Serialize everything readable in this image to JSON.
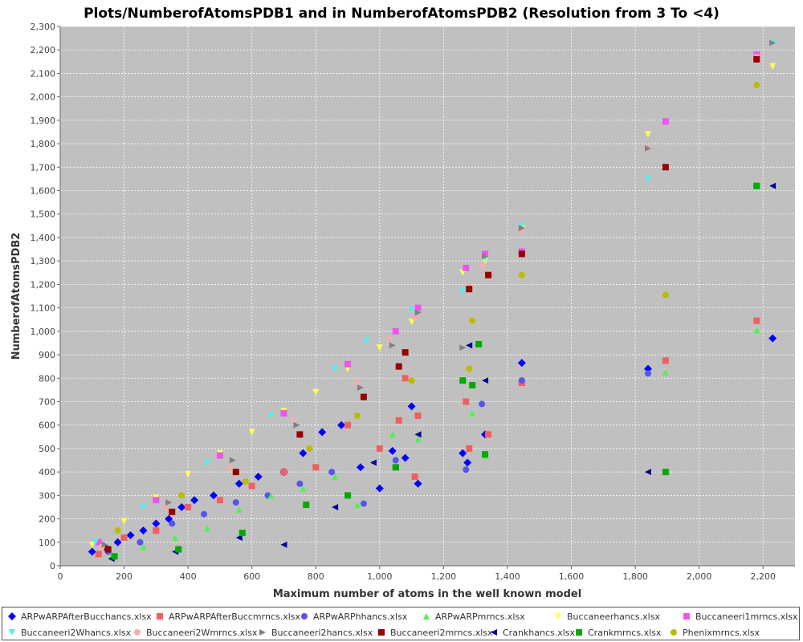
{
  "chart_data": {
    "type": "scatter",
    "title": "Plots/NumberofAtomsPDB1 and in NumberofAtomsPDB2 (Resolution from 3 To <4)",
    "xlabel": "Maximum number of atoms in the well known model",
    "ylabel": "NumberofAtomsPDB2",
    "xlim": [
      0,
      2300
    ],
    "ylim": [
      0,
      2300
    ],
    "x_ticks": [
      "0",
      "200",
      "400",
      "600",
      "800",
      "1,000",
      "1,200",
      "1,400",
      "1,600",
      "1,800",
      "2,000",
      "2,200"
    ],
    "y_ticks": [
      "0",
      "100",
      "200",
      "300",
      "400",
      "500",
      "600",
      "700",
      "800",
      "900",
      "1,000",
      "1,100",
      "1,200",
      "1,300",
      "1,400",
      "1,500",
      "1,600",
      "1,700",
      "1,800",
      "1,900",
      "2,000",
      "2,100",
      "2,200",
      "2,300"
    ],
    "grid": true,
    "background": "#c0c0c0",
    "legend_position": "bottom",
    "series": [
      {
        "name": "ARPwARPAfterBucchancs.xlsx",
        "color": "#0000ff",
        "marker": "diamond",
        "points": [
          [
            100,
            60
          ],
          [
            140,
            80
          ],
          [
            180,
            100
          ],
          [
            220,
            130
          ],
          [
            260,
            150
          ],
          [
            300,
            180
          ],
          [
            340,
            200
          ],
          [
            380,
            250
          ],
          [
            420,
            280
          ],
          [
            480,
            300
          ],
          [
            560,
            350
          ],
          [
            620,
            380
          ],
          [
            700,
            400
          ],
          [
            760,
            480
          ],
          [
            820,
            570
          ],
          [
            880,
            600
          ],
          [
            940,
            420
          ],
          [
            1000,
            330
          ],
          [
            1040,
            490
          ],
          [
            1080,
            460
          ],
          [
            1100,
            680
          ],
          [
            1120,
            350
          ],
          [
            1260,
            480
          ],
          [
            1275,
            440
          ],
          [
            1330,
            560
          ],
          [
            1445,
            865
          ],
          [
            1840,
            840
          ],
          [
            2230,
            970
          ]
        ]
      },
      {
        "name": "ARPwARPAfterBuccmrncs.xlsx",
        "color": "#f06060",
        "marker": "square",
        "points": [
          [
            120,
            50
          ],
          [
            200,
            120
          ],
          [
            300,
            150
          ],
          [
            400,
            250
          ],
          [
            500,
            280
          ],
          [
            600,
            340
          ],
          [
            700,
            400
          ],
          [
            800,
            420
          ],
          [
            900,
            600
          ],
          [
            1000,
            500
          ],
          [
            1060,
            620
          ],
          [
            1080,
            800
          ],
          [
            1120,
            640
          ],
          [
            1110,
            380
          ],
          [
            1270,
            700
          ],
          [
            1280,
            500
          ],
          [
            1340,
            560
          ],
          [
            1445,
            780
          ],
          [
            1895,
            875
          ],
          [
            2180,
            1045
          ]
        ]
      },
      {
        "name": "ARPwARPhhancs.xlsx",
        "color": "#5555ee",
        "marker": "circle",
        "points": [
          [
            150,
            60
          ],
          [
            250,
            100
          ],
          [
            350,
            180
          ],
          [
            450,
            220
          ],
          [
            550,
            270
          ],
          [
            650,
            300
          ],
          [
            750,
            350
          ],
          [
            850,
            400
          ],
          [
            950,
            265
          ],
          [
            1050,
            450
          ],
          [
            1270,
            410
          ],
          [
            1320,
            690
          ],
          [
            1445,
            790
          ],
          [
            1840,
            820
          ]
        ]
      },
      {
        "name": "ARPwARPmrncs.xlsx",
        "color": "#55ee55",
        "marker": "triangle-up",
        "points": [
          [
            160,
            40
          ],
          [
            260,
            80
          ],
          [
            360,
            120
          ],
          [
            460,
            160
          ],
          [
            560,
            240
          ],
          [
            660,
            300
          ],
          [
            760,
            330
          ],
          [
            860,
            380
          ],
          [
            930,
            260
          ],
          [
            1040,
            560
          ],
          [
            1120,
            540
          ],
          [
            1290,
            650
          ],
          [
            1330,
            470
          ],
          [
            1895,
            825
          ],
          [
            2180,
            1005
          ]
        ]
      },
      {
        "name": "Buccaneerhancs.xlsx",
        "color": "#ffff55",
        "marker": "triangle-down",
        "points": [
          [
            100,
            90
          ],
          [
            200,
            190
          ],
          [
            300,
            290
          ],
          [
            400,
            390
          ],
          [
            500,
            480
          ],
          [
            600,
            570
          ],
          [
            700,
            660
          ],
          [
            800,
            740
          ],
          [
            900,
            840
          ],
          [
            1000,
            930
          ],
          [
            1100,
            1040
          ],
          [
            1260,
            1250
          ],
          [
            1330,
            1300
          ],
          [
            1445,
            1440
          ],
          [
            1840,
            1840
          ],
          [
            2230,
            2130
          ]
        ]
      },
      {
        "name": "Buccaneeri1mrncs.xlsx",
        "color": "#ee55ee",
        "marker": "square",
        "points": [
          [
            120,
            100
          ],
          [
            300,
            280
          ],
          [
            500,
            470
          ],
          [
            700,
            650
          ],
          [
            900,
            860
          ],
          [
            1050,
            1000
          ],
          [
            1120,
            1100
          ],
          [
            1270,
            1270
          ],
          [
            1330,
            1330
          ],
          [
            1445,
            1340
          ],
          [
            1895,
            1895
          ],
          [
            2180,
            2180
          ]
        ]
      },
      {
        "name": "Buccaneeri2Whancs.xlsx",
        "color": "#55eeee",
        "marker": "triangle-down",
        "points": [
          [
            110,
            100
          ],
          [
            260,
            250
          ],
          [
            460,
            440
          ],
          [
            660,
            640
          ],
          [
            860,
            840
          ],
          [
            960,
            960
          ],
          [
            1100,
            1090
          ],
          [
            1260,
            1170
          ],
          [
            1330,
            1310
          ],
          [
            1445,
            1450
          ],
          [
            1840,
            1650
          ],
          [
            2230,
            2230
          ]
        ]
      },
      {
        "name": "Buccaneeri2Wmrncs.xlsx",
        "color": "#f0b0b0",
        "marker": "circle",
        "points": [
          [
            130,
            80
          ],
          [
            330,
            250
          ],
          [
            530,
            420
          ],
          [
            730,
            620
          ],
          [
            930,
            780
          ],
          [
            1030,
            970
          ],
          [
            1110,
            1060
          ],
          [
            1280,
            1190
          ],
          [
            1320,
            1280
          ],
          [
            1445,
            1430
          ],
          [
            1840,
            1780
          ],
          [
            1895,
            1700
          ],
          [
            2180,
            2170
          ]
        ]
      },
      {
        "name": "Buccaneeri2hancs.xlsx",
        "color": "#808080",
        "marker": "triangle-right",
        "points": [
          [
            140,
            90
          ],
          [
            340,
            270
          ],
          [
            540,
            450
          ],
          [
            740,
            600
          ],
          [
            940,
            760
          ],
          [
            1040,
            940
          ],
          [
            1120,
            1080
          ],
          [
            1260,
            930
          ],
          [
            1330,
            1320
          ],
          [
            1445,
            1440
          ],
          [
            1840,
            1780
          ],
          [
            2230,
            2230
          ]
        ]
      },
      {
        "name": "Buccaneeri2mrncs.xlsx",
        "color": "#990000",
        "marker": "square",
        "points": [
          [
            150,
            70
          ],
          [
            350,
            230
          ],
          [
            550,
            400
          ],
          [
            750,
            560
          ],
          [
            950,
            720
          ],
          [
            1060,
            850
          ],
          [
            1080,
            910
          ],
          [
            1280,
            1180
          ],
          [
            1340,
            1240
          ],
          [
            1445,
            1330
          ],
          [
            1895,
            1700
          ],
          [
            2180,
            2160
          ]
        ]
      },
      {
        "name": "Crankhancs.xlsx",
        "color": "#000099",
        "marker": "triangle-left",
        "points": [
          [
            160,
            30
          ],
          [
            360,
            60
          ],
          [
            560,
            120
          ],
          [
            700,
            90
          ],
          [
            860,
            250
          ],
          [
            980,
            440
          ],
          [
            1050,
            420
          ],
          [
            1120,
            560
          ],
          [
            1280,
            940
          ],
          [
            1330,
            790
          ],
          [
            1840,
            400
          ],
          [
            2230,
            1620
          ]
        ]
      },
      {
        "name": "Crankmrncs.xlsx",
        "color": "#00aa00",
        "marker": "square",
        "points": [
          [
            170,
            40
          ],
          [
            370,
            70
          ],
          [
            570,
            140
          ],
          [
            770,
            260
          ],
          [
            900,
            300
          ],
          [
            1050,
            420
          ],
          [
            1260,
            790
          ],
          [
            1290,
            770
          ],
          [
            1310,
            945
          ],
          [
            1330,
            475
          ],
          [
            1895,
            400
          ],
          [
            2180,
            1620
          ]
        ]
      },
      {
        "name": "Phenixmrncs.xlsx",
        "color": "#bbbb00",
        "marker": "circle",
        "points": [
          [
            180,
            150
          ],
          [
            380,
            300
          ],
          [
            580,
            360
          ],
          [
            780,
            500
          ],
          [
            930,
            640
          ],
          [
            1100,
            790
          ],
          [
            1280,
            840
          ],
          [
            1290,
            1045
          ],
          [
            1445,
            1240
          ],
          [
            1895,
            1155
          ],
          [
            2180,
            2050
          ]
        ]
      }
    ]
  }
}
